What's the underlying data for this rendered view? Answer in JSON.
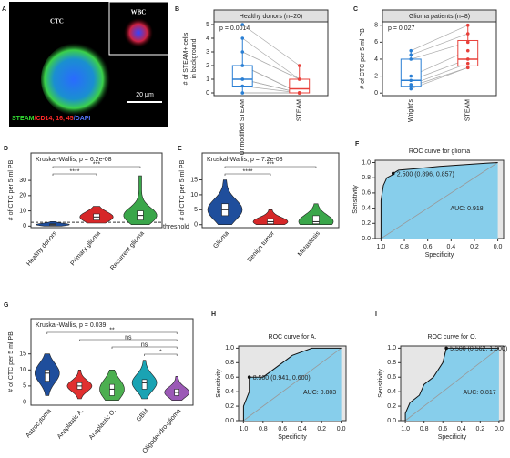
{
  "chart_data": [
    {
      "panel": "A",
      "type": "image",
      "cell_label": "CTC",
      "inset_label": "WBC",
      "scale_bar": "20 μm",
      "stain_legend": [
        {
          "text": "STEAM",
          "color": "#33dd33"
        },
        {
          "text": "/CD14, 16, 45",
          "color": "#ff2a2a"
        },
        {
          "text": "/DAPI",
          "color": "#5577ff"
        }
      ]
    },
    {
      "panel": "B",
      "type": "box",
      "title": "Healthy donors (n=20)",
      "subtitle": "p = 0.0014",
      "ylabel": [
        "# of STEAM+ cells",
        "in background"
      ],
      "categories": [
        "Unmodified STEAM",
        "STEAM"
      ],
      "colors": [
        "#2a7fd4",
        "#e8403a"
      ],
      "boxes": [
        {
          "min": 0,
          "q1": 0.5,
          "median": 1,
          "q3": 2,
          "max": 4
        },
        {
          "min": 0,
          "q1": 0,
          "median": 0.3,
          "q3": 1,
          "max": 2
        }
      ],
      "points": [
        [
          5,
          4,
          3,
          2,
          2,
          1,
          1,
          0.5,
          0,
          0
        ],
        [
          2,
          1,
          1,
          0,
          0,
          0,
          0,
          0,
          0,
          0
        ]
      ],
      "ylim": [
        -0.2,
        5.2
      ],
      "yticks": [
        0,
        1,
        2,
        3,
        4,
        5
      ]
    },
    {
      "panel": "C",
      "type": "box",
      "title": "Glioma patients (n=8)",
      "subtitle": "p = 0.027",
      "ylabel": [
        "# of CTC per 5 ml PB"
      ],
      "categories": [
        "Wright's",
        "STEAM"
      ],
      "colors": [
        "#2a7fd4",
        "#e8403a"
      ],
      "boxes": [
        {
          "min": 0.5,
          "q1": 0.8,
          "median": 1.5,
          "q3": 4,
          "max": 5
        },
        {
          "min": 3,
          "q1": 3.2,
          "median": 4,
          "q3": 6.2,
          "max": 8
        }
      ],
      "points": [
        [
          5,
          4.5,
          4,
          2,
          1.5,
          1,
          0.8,
          0.5
        ],
        [
          8,
          7,
          6,
          5,
          4,
          3.5,
          3,
          3
        ]
      ],
      "ylim": [
        -0.3,
        8.4
      ],
      "yticks": [
        0,
        2,
        4,
        6,
        8
      ]
    },
    {
      "panel": "D",
      "type": "violin",
      "subtitle": "Kruskal-Wallis, p = 6.2e-08",
      "ylabel": [
        "# of CTC per 5 ml PB"
      ],
      "categories": [
        "Healthy donors",
        "Primary glioma",
        "Recurrent glioma"
      ],
      "colors": [
        "#1f4e9c",
        "#d62728",
        "#3aa64a"
      ],
      "boxes": [
        {
          "min": 0,
          "q1": 0.5,
          "median": 1,
          "q3": 1.5,
          "max": 3
        },
        {
          "min": 2,
          "q1": 4,
          "median": 6,
          "q3": 8,
          "max": 13
        },
        {
          "min": 1,
          "q1": 4,
          "median": 7,
          "q3": 10,
          "max": 33
        }
      ],
      "comparisons": [
        {
          "groups": [
            "Healthy donors",
            "Recurrent glioma"
          ],
          "label": "***"
        },
        {
          "groups": [
            "Healthy donors",
            "Primary glioma"
          ],
          "label": "****"
        }
      ],
      "threshold": {
        "value": 2.5,
        "label": "threshold"
      },
      "ylim": [
        -1,
        48
      ],
      "yticks": [
        0,
        10,
        20,
        30
      ]
    },
    {
      "panel": "E",
      "type": "violin",
      "subtitle": "Kruskal-Wallis, p = 7.2e-08",
      "ylabel": [
        "# of CTC per 5 ml PB"
      ],
      "categories": [
        "Glioma",
        "Benign tumor",
        "Metastasis"
      ],
      "colors": [
        "#1f4e9c",
        "#d62728",
        "#3aa64a"
      ],
      "boxes": [
        {
          "min": 0,
          "q1": 3,
          "median": 5,
          "q3": 7,
          "max": 15
        },
        {
          "min": 0,
          "q1": 0.3,
          "median": 1,
          "q3": 2,
          "max": 5
        },
        {
          "min": 0,
          "q1": 0.3,
          "median": 1,
          "q3": 3,
          "max": 7
        }
      ],
      "comparisons": [
        {
          "groups": [
            "Glioma",
            "Metastasis"
          ],
          "label": "***"
        },
        {
          "groups": [
            "Glioma",
            "Benign tumor"
          ],
          "label": "****"
        }
      ],
      "ylim": [
        -1,
        24
      ],
      "yticks": [
        0,
        5,
        10,
        15
      ]
    },
    {
      "panel": "F",
      "type": "roc",
      "title": "ROC curve for glioma",
      "xlabel": "Specificity",
      "ylabel": [
        "Sensitivity"
      ],
      "specificity": [
        1,
        1,
        0.98,
        0.95,
        0.9,
        0.896,
        0.85,
        0.7,
        0.5,
        0.3,
        0.1,
        0
      ],
      "sensitivity": [
        0,
        0.5,
        0.7,
        0.8,
        0.84,
        0.857,
        0.9,
        0.92,
        0.95,
        0.97,
        0.99,
        1
      ],
      "best": {
        "x": 0.896,
        "y": 0.857,
        "label": "2.500 (0.896, 0.857)"
      },
      "auc_label": "AUC: 0.918",
      "xlim": [
        1.05,
        -0.05
      ],
      "ylim": [
        0,
        1.03
      ],
      "xticks": [
        {
          "value": 1,
          "label": "1.0"
        },
        0.8,
        0.6,
        0.4,
        0.2,
        {
          "value": 0,
          "label": "0.0"
        }
      ],
      "yticks": [
        {
          "value": 0,
          "label": "0.0"
        },
        0.2,
        0.4,
        0.6,
        0.8,
        {
          "value": 1,
          "label": "1.0"
        }
      ]
    },
    {
      "panel": "G",
      "type": "violin",
      "subtitle": "Kruskal-Wallis, p = 0.039",
      "ylabel": [
        "# of CTC per 5 ml PB"
      ],
      "categories": [
        "Astrocytoma",
        "Anaplastic A.",
        "Anaplastic O.",
        "GBM",
        "Oligodendro-glioma"
      ],
      "colors": [
        "#1f4e9c",
        "#e03030",
        "#4caf50",
        "#1aa3b3",
        "#9b59b6"
      ],
      "boxes": [
        {
          "min": 2,
          "q1": 6.5,
          "median": 9,
          "q3": 10,
          "max": 15
        },
        {
          "min": 1,
          "q1": 4,
          "median": 5,
          "q3": 6,
          "max": 10
        },
        {
          "min": 0.5,
          "q1": 2,
          "median": 4,
          "q3": 5.5,
          "max": 10
        },
        {
          "min": 1,
          "q1": 4,
          "median": 6,
          "q3": 7,
          "max": 13
        },
        {
          "min": 0.5,
          "q1": 2,
          "median": 3,
          "q3": 4,
          "max": 8
        }
      ],
      "comparisons": [
        {
          "groups": [
            "Astrocytoma",
            "Oligodendro-glioma"
          ],
          "label": "**"
        },
        {
          "groups": [
            "Anaplastic A.",
            "Oligodendro-glioma"
          ],
          "label": "ns"
        },
        {
          "groups": [
            "Anaplastic O.",
            "Oligodendro-glioma"
          ],
          "label": "ns"
        },
        {
          "groups": [
            "GBM",
            "Oligodendro-glioma"
          ],
          "label": "*"
        }
      ],
      "ylim": [
        -1,
        26
      ],
      "yticks": [
        0,
        5,
        10,
        15
      ]
    },
    {
      "panel": "H",
      "type": "roc",
      "title": "ROC curve for A.",
      "xlabel": "Specificity",
      "ylabel": [
        "Sensitivity"
      ],
      "specificity": [
        1,
        1,
        0.941,
        0.941,
        0.8,
        0.6,
        0.5,
        0.3,
        0
      ],
      "sensitivity": [
        0,
        0.2,
        0.4,
        0.6,
        0.6,
        0.8,
        0.9,
        1,
        1
      ],
      "best": {
        "x": 0.941,
        "y": 0.6,
        "label": "8.500 (0.941, 0.600)"
      },
      "auc_label": "AUC: 0.803",
      "xlim": [
        1.05,
        -0.05
      ],
      "ylim": [
        0,
        1.03
      ],
      "xticks": [
        {
          "value": 1,
          "label": "1.0"
        },
        0.8,
        0.6,
        0.4,
        0.2,
        {
          "value": 0,
          "label": "0.0"
        }
      ],
      "yticks": [
        {
          "value": 0,
          "label": "0.0"
        },
        0.2,
        0.4,
        0.6,
        0.8,
        {
          "value": 1,
          "label": "1.0"
        }
      ]
    },
    {
      "panel": "I",
      "type": "roc",
      "title": "ROC curve for O.",
      "xlabel": "Specificity",
      "ylabel": [
        "Sensitivity"
      ],
      "specificity": [
        1,
        1,
        0.95,
        0.9,
        0.85,
        0.8,
        0.7,
        0.6,
        0.562,
        0.3,
        0
      ],
      "sensitivity": [
        0,
        0.1,
        0.25,
        0.3,
        0.35,
        0.5,
        0.6,
        0.8,
        1,
        1,
        1
      ],
      "best": {
        "x": 0.562,
        "y": 1,
        "label": "5.500 (0.562, 1.000)"
      },
      "auc_label": "AUC: 0.817",
      "xlim": [
        1.05,
        -0.05
      ],
      "ylim": [
        0,
        1.03
      ],
      "xticks": [
        {
          "value": 1,
          "label": "1.0"
        },
        0.8,
        0.6,
        0.4,
        0.2,
        {
          "value": 0,
          "label": "0.0"
        }
      ],
      "yticks": [
        {
          "value": 0,
          "label": "0.0"
        },
        0.2,
        0.4,
        0.6,
        0.8,
        {
          "value": 1,
          "label": "1.0"
        }
      ]
    }
  ]
}
